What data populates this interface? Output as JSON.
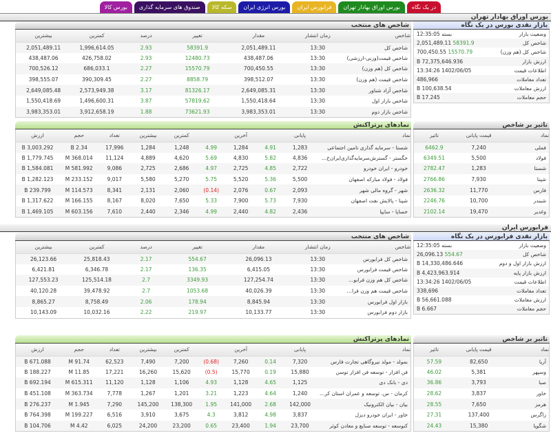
{
  "tabs": [
    {
      "label": "در یک نگاه",
      "color": "#c8102e"
    },
    {
      "label": "بورس اوراق بهادار تهران",
      "color": "#1f8a1f"
    },
    {
      "label": "فرابورس ایران",
      "color": "#e8b424"
    },
    {
      "label": "بورس انرژی ایران",
      "color": "#1c1ca8"
    },
    {
      "label": "سکه کالا",
      "color": "#b8b82a"
    },
    {
      "label": "صندوق های سرمایه گذاری",
      "color": "#3a1060"
    },
    {
      "label": "بورس کالا",
      "color": "#a020a0"
    }
  ],
  "colors": {
    "positive": "#3a9a3a",
    "negative": "#e02020"
  },
  "tse": {
    "section_title": "بورس اوراق بهادار تهران",
    "glance": {
      "title": "بازار نقدی بورس در یک نگاه",
      "rows": [
        {
          "label": "وضعیت بازار",
          "value": "بسته 12:35:05"
        },
        {
          "label": "شاخص کل",
          "value": "2,051,489.11",
          "change": "58391.9"
        },
        {
          "label": "شاخص کل (هم وزن)",
          "value": "700,450.55",
          "change": "15570.79"
        },
        {
          "label": "ارزش بازار",
          "value": "72,375,646.936 B"
        },
        {
          "label": "اطلاعات قیمت",
          "value": "1402/06/05 13:34:26"
        },
        {
          "label": "تعداد معاملات",
          "value": "486,966"
        },
        {
          "label": "ارزش معاملات",
          "value": "100,638.54 B"
        },
        {
          "label": "حجم معاملات",
          "value": "17.245 B"
        }
      ]
    },
    "indices": {
      "title": "شاخص های منتخب",
      "headers": [
        "شاخص",
        "زمان انتشار",
        "مقدار",
        "تغییر",
        "درصد",
        "کمترین",
        "بیشترین"
      ],
      "rows": [
        [
          "شاخص کل",
          "13:30",
          "2,051,489.11",
          "58391.9",
          "2.93",
          "1,996,614.05",
          "2,051,489.11"
        ],
        [
          "شاخص قیمت(وزنی-ارزشی)",
          "13:30",
          "438,487.06",
          "12480.73",
          "2.93",
          "426,758.02",
          "438,487.06"
        ],
        [
          "شاخص کل (هم وزن)",
          "13:30",
          "700,450.55",
          "15570.79",
          "2.27",
          "686,033.1",
          "700,526.12"
        ],
        [
          "شاخص قیمت (هم وزن)",
          "13:30",
          "398,512.07",
          "8858.79",
          "2.27",
          "390,309.45",
          "398,555.07"
        ],
        [
          "شاخص آزاد شناور",
          "13:30",
          "2,649,085.31",
          "81326.17",
          "3.17",
          "2,573,949.38",
          "2,649,085.48"
        ],
        [
          "شاخص بازار اول",
          "13:30",
          "1,550,418.64",
          "57819.62",
          "3.87",
          "1,496,600.31",
          "1,550,418.69"
        ],
        [
          "شاخص بازار دوم",
          "13:30",
          "3,983,353.01",
          "73621.93",
          "1.88",
          "3,912,658.19",
          "3,983,353.01"
        ]
      ]
    },
    "impact": {
      "title": "تاثیر بر شاخص",
      "headers": [
        "نماد",
        "قیمت پایانی",
        "تاثیر"
      ],
      "rows": [
        [
          "فملی",
          "7,240",
          "6462.9"
        ],
        [
          "فولاد",
          "5,500",
          "6349.51"
        ],
        [
          "شستا",
          "1,283",
          "2782.47"
        ],
        [
          "شپنا",
          "7,930",
          "2766.86"
        ],
        [
          "فارس",
          "11,770",
          "2636.32"
        ],
        [
          "شبندر",
          "10,700",
          "2246.76"
        ],
        [
          "وغدیر",
          "19,470",
          "2102.14"
        ]
      ]
    },
    "active": {
      "title": "نمادهای پرتراکنش",
      "headers": [
        "نماد",
        "پایانی",
        "",
        "آخرین",
        "",
        "کمترین",
        "بیشترین",
        "تعداد",
        "حجم",
        "ارزش"
      ],
      "rows": [
        [
          "شستا - سرمایه گذاری تامین اجتماعی",
          "1,283",
          "4.91",
          "1,284",
          "4.99",
          "1,248",
          "1,284",
          "17,996",
          "2.34 B",
          "3,003.292 B"
        ],
        [
          "خگستر - گسترش‌سرمایه‌گذاری‌ایران‌خ...",
          "4,836",
          "5.82",
          "4,830",
          "5.69",
          "4,620",
          "4,889",
          "11,124",
          "368.014 M",
          "1,779.745 B"
        ],
        [
          "خودرو - ایران خودرو",
          "2,722",
          "4.85",
          "2,725",
          "4.97",
          "2,686",
          "2,725",
          "9,086",
          "581.992 M",
          "1,584.081 B"
        ],
        [
          "فولاد - فولاد مبارکه اصفهان",
          "5,500",
          "5.36",
          "5,520",
          "5.75",
          "5,270",
          "5,580",
          "9,017",
          "233.152 M",
          "1,282.123 B"
        ],
        [
          "شهر - گروه مالی شهر",
          "2,093",
          "0.67",
          "2,076",
          "(0.14)",
          "2,060",
          "2,131",
          "8,341",
          "114.573 M",
          "239.799 B"
        ],
        [
          "شپنا - پالایش نفت اصفهان",
          "7,930",
          "5.73",
          "7,900",
          "5.33",
          "7,650",
          "8,020",
          "8,167",
          "166.155 M",
          "1,317.622 B"
        ],
        [
          "خساپا - سایپا",
          "2,436",
          "4.82",
          "2,440",
          "4.99",
          "2,346",
          "2,440",
          "7,610",
          "603.156 M",
          "1,469.105 B"
        ]
      ]
    }
  },
  "ifb": {
    "section_title": "فرابورس ایران",
    "glance": {
      "title": "بازار نقدی فرابورس در یک نگاه",
      "rows": [
        {
          "label": "وضعیت بازار",
          "value": "بسته 12:35:05"
        },
        {
          "label": "شاخص کل",
          "value": "26,096.13",
          "change": "554.67"
        },
        {
          "label": "ارزش بازار اول و دوم",
          "value": "14,330,486.646 B"
        },
        {
          "label": "ارزش بازار پایه",
          "value": "4,423,963.914 B"
        },
        {
          "label": "اطلاعات قیمت",
          "value": "1402/06/05 13:34:26"
        },
        {
          "label": "تعداد معاملات",
          "value": "338,696"
        },
        {
          "label": "ارزش معاملات",
          "value": "56,661.088 B"
        },
        {
          "label": "حجم معاملات",
          "value": "6.667 B"
        }
      ]
    },
    "indices": {
      "title": "شاخص های منتخب",
      "headers": [
        "شاخص",
        "زمان انتشار",
        "مقدار",
        "تغییر",
        "درصد",
        "کمترین",
        "بیشترین"
      ],
      "rows": [
        [
          "شاخص کل فرابورس",
          "13:30",
          "26,096.13",
          "554.67",
          "2.17",
          "25,818.43",
          "26,123.66"
        ],
        [
          "شاخص قیمت فرابورس",
          "13:30",
          "6,415.05",
          "136.35",
          "2.17",
          "6,346.78",
          "6,421.81"
        ],
        [
          "شاخص کل هم وزن فرابورس",
          "13:30",
          "127,254.74",
          "3349.93",
          "2.7",
          "125,514.18",
          "127,553.23"
        ],
        [
          "شاخص قیمت هم وزن فراب...",
          "13:30",
          "40,026.39",
          "1053.68",
          "2.7",
          "39,478.92",
          "40,120.28"
        ],
        [
          "بازار اول فرابورس",
          "13:30",
          "8,845.94",
          "178.94",
          "2.06",
          "8,758.49",
          "8,865.27"
        ],
        [
          "بازار دوم فرابورس",
          "13:30",
          "10,133.77",
          "219.97",
          "2.22",
          "10,032.16",
          "10,143.09"
        ]
      ]
    },
    "impact": {
      "title": "تاثیر بر شاخص",
      "headers": [
        "نماد",
        "قیمت پایانی",
        "تاثیر"
      ],
      "rows": [
        [
          "آریا",
          "82,650",
          "57.59"
        ],
        [
          "وسپهر",
          "5,381",
          "46.02"
        ],
        [
          "صبا",
          "3,793",
          "36.86"
        ],
        [
          "خاور",
          "3,837",
          "28.62"
        ],
        [
          "هرمز",
          "7,650",
          "28.55"
        ],
        [
          "زاگرس",
          "137,400",
          "27.31"
        ],
        [
          "شگویا",
          "15,380",
          "24.43"
        ]
      ]
    },
    "active": {
      "title": "نمادهای پرتراکنش",
      "headers": [
        "نماد",
        "پایانی",
        "",
        "آخرین",
        "",
        "کمترین",
        "بیشترین",
        "تعداد",
        "حجم",
        "ارزش"
      ],
      "rows": [
        [
          "بمولد - مولد نیروگاهی تجارت فارس",
          "7,320",
          "0.14",
          "7,260",
          "(0.68)",
          "7,200",
          "7,490",
          "62,523",
          "91.74 M",
          "671.088 B"
        ],
        [
          "فن افزار - توسعه فن افزار توسن",
          "15,880",
          "0.19",
          "15,770",
          "(0.5)",
          "15,620",
          "16,260",
          "17,221",
          "11.85 M",
          "188.227 B"
        ],
        [
          "دی - بانک دی",
          "1,125",
          "4.65",
          "1,128",
          "4.93",
          "1,106",
          "1,128",
          "11,120",
          "615.311 M",
          "692.194 B"
        ],
        [
          "کرمان - س. توسعه و عمران استان کرم...",
          "1,240",
          "4.64",
          "1,223",
          "3.21",
          "1,201",
          "1,267",
          "7,778",
          "363.734 M",
          "451.108 B"
        ],
        [
          "بیان - بیان الکترونیک",
          "142,000",
          "2.68",
          "141,000",
          "1.95",
          "138,300",
          "145,200",
          "7,290",
          "1.945 M",
          "276.237 B"
        ],
        [
          "خاور - ایران خودرو دیزل",
          "3,837",
          "4.98",
          "3,812",
          "4.3",
          "3,675",
          "3,910",
          "6,516",
          "199.227 M",
          "764.398 B"
        ],
        [
          "کنوسعه - توسعه صنایع و معادن کوثر",
          "23,700",
          "1.94",
          "23,400",
          "0.65",
          "23,200",
          "24,200",
          "6,025",
          "4.42 M",
          "104.706 B"
        ]
      ]
    }
  }
}
